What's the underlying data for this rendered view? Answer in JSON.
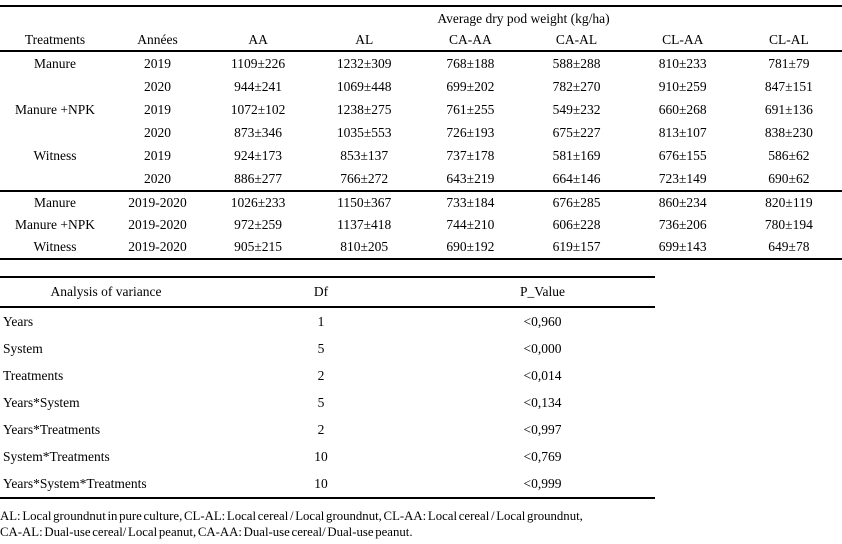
{
  "table1": {
    "span_header": "Average dry pod weight (kg/ha)",
    "columns": [
      "Treatments",
      "Années",
      "AA",
      "AL",
      "CA-AA",
      "CA-AL",
      "CL-AA",
      "CL-AL"
    ],
    "rows": [
      {
        "treatment": "Manure",
        "year": "2019",
        "values": [
          "1109±226",
          "1232±309",
          "768±188",
          "588±288",
          "810±233",
          "781±79"
        ]
      },
      {
        "treatment": "",
        "year": "2020",
        "values": [
          "944±241",
          "1069±448",
          "699±202",
          "782±270",
          "910±259",
          "847±151"
        ]
      },
      {
        "treatment": "Manure +NPK",
        "year": "2019",
        "values": [
          "1072±102",
          "1238±275",
          "761±255",
          "549±232",
          "660±268",
          "691±136"
        ]
      },
      {
        "treatment": "",
        "year": "2020",
        "values": [
          "873±346",
          "1035±553",
          "726±193",
          "675±227",
          "813±107",
          "838±230"
        ]
      },
      {
        "treatment": "Witness",
        "year": "2019",
        "values": [
          "924±173",
          "853±137",
          "737±178",
          "581±169",
          "676±155",
          "586±62"
        ]
      },
      {
        "treatment": "",
        "year": "2020",
        "values": [
          "886±277",
          "766±272",
          "643±219",
          "664±146",
          "723±149",
          "690±62"
        ]
      }
    ],
    "summary_rows": [
      {
        "treatment": "Manure",
        "year": "2019-2020",
        "values": [
          "1026±233",
          "1150±367",
          "733±184",
          "676±285",
          "860±234",
          "820±119"
        ]
      },
      {
        "treatment": "Manure +NPK",
        "year": "2019-2020",
        "values": [
          "972±259",
          "1137±418",
          "744±210",
          "606±228",
          "736±206",
          "780±194"
        ]
      },
      {
        "treatment": "Witness",
        "year": "2019-2020",
        "values": [
          "905±215",
          "810±205",
          "690±192",
          "619±157",
          "699±143",
          "649±78"
        ]
      }
    ]
  },
  "table2": {
    "columns": [
      "Analysis of variance",
      "Df",
      "P_Value"
    ],
    "rows": [
      {
        "source": "Years",
        "df": "1",
        "p": "<0,960"
      },
      {
        "source": "System",
        "df": "5",
        "p": "<0,000"
      },
      {
        "source": "Treatments",
        "df": "2",
        "p": "<0,014"
      },
      {
        "source": "Years*System",
        "df": "5",
        "p": "<0,134"
      },
      {
        "source": "Years*Treatments",
        "df": "2",
        "p": "<0,997"
      },
      {
        "source": "System*Treatments",
        "df": "10",
        "p": "<0,769"
      },
      {
        "source": "Years*System*Treatments",
        "df": "10",
        "p": "<0,999"
      }
    ]
  },
  "footnote": {
    "line1": "AL: Local groundnut in pure culture, CL-AL: Local cereal / Local groundnut, CL-AA: Local cereal / Local groundnut,",
    "line2": "CA-AL: Dual-use cereal/ Local peanut, CA-AA: Dual-use cereal/ Dual-use peanut."
  }
}
